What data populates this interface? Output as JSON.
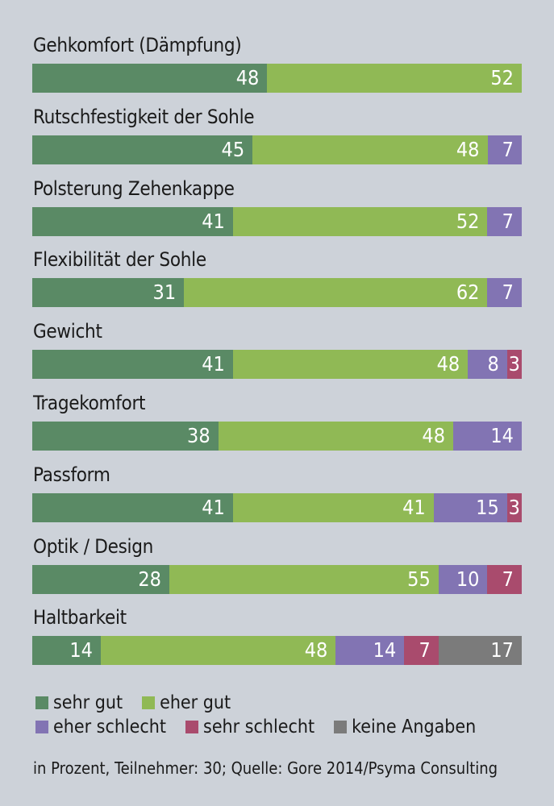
{
  "chart_data": {
    "type": "bar",
    "orientation": "horizontal",
    "stacked": true,
    "title": "",
    "xlabel": "",
    "ylabel": "",
    "xlim": [
      0,
      100
    ],
    "categories": [
      "Gehkomfort (Dämpfung)",
      "Rutschfestigkeit der Sohle",
      "Polsterung Zehenkappe",
      "Flexibilität der Sohle",
      "Gewicht",
      "Tragekomfort",
      "Passform",
      "Optik / Design",
      "Haltbarkeit"
    ],
    "series": [
      {
        "name": "sehr gut",
        "color": "#5a8a65",
        "values": [
          48,
          45,
          41,
          31,
          41,
          38,
          41,
          28,
          14
        ]
      },
      {
        "name": "eher gut",
        "color": "#90b955",
        "values": [
          52,
          48,
          52,
          62,
          48,
          48,
          41,
          55,
          48
        ]
      },
      {
        "name": "eher schlecht",
        "color": "#8274b3",
        "values": [
          0,
          7,
          7,
          7,
          8,
          14,
          15,
          10,
          14
        ]
      },
      {
        "name": "sehr schlecht",
        "color": "#a94b6d",
        "values": [
          0,
          0,
          0,
          0,
          3,
          0,
          3,
          7,
          7
        ]
      },
      {
        "name": "keine Angaben",
        "color": "#7b7b7b",
        "values": [
          0,
          0,
          0,
          0,
          0,
          0,
          0,
          0,
          17
        ]
      }
    ],
    "legend_position": "bottom",
    "grid": false,
    "note": "in Prozent, Teilnehmer: 30; Quelle: Gore 2014/Psyma Consulting"
  },
  "legend": {
    "row1": [
      {
        "label": "sehr gut",
        "color": "#5a8a65"
      },
      {
        "label": "eher gut",
        "color": "#90b955"
      }
    ],
    "row2": [
      {
        "label": "eher schlecht",
        "color": "#8274b3"
      },
      {
        "label": "sehr schlecht",
        "color": "#a94b6d"
      },
      {
        "label": "keine Angaben",
        "color": "#7b7b7b"
      }
    ]
  },
  "source": "in Prozent, Teilnehmer: 30; Quelle: Gore 2014/Psyma Consulting"
}
